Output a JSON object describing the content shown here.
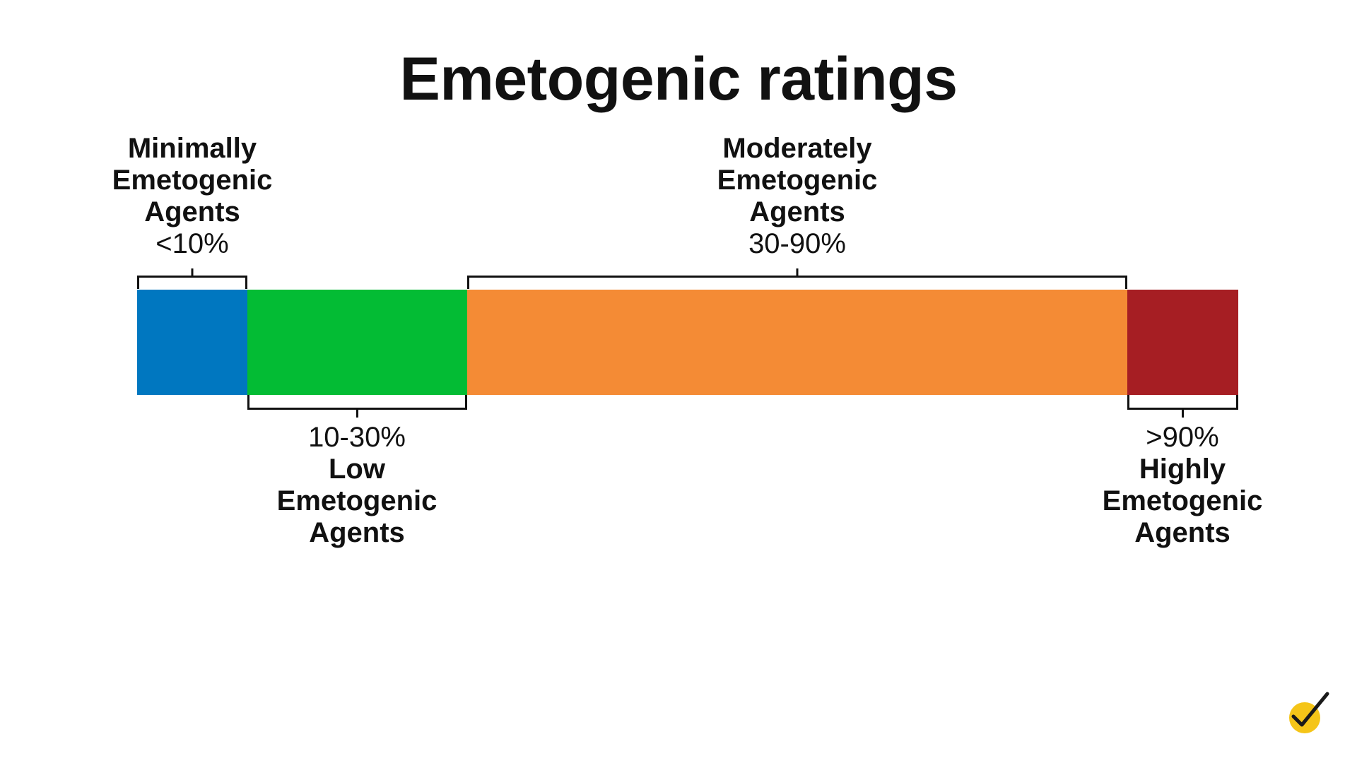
{
  "title": "Emetogenic ratings",
  "categories": [
    {
      "id": "minimal",
      "name": "Minimally\nEmetogenic\nAgents",
      "range": "<10%",
      "color": "#0077C0"
    },
    {
      "id": "low",
      "name": "Low\nEmetogenic\nAgents",
      "range": "10-30%",
      "color": "#03BC34"
    },
    {
      "id": "moderate",
      "name": "Moderately\nEmetogenic\nAgents",
      "range": "30-90%",
      "color": "#F48B35"
    },
    {
      "id": "high",
      "name": "Highly\nEmetogenic\nAgents",
      "range": ">90%",
      "color": "#A61E23"
    }
  ],
  "logo": {
    "icon": "checkmark-icon",
    "color": "#F5C518"
  }
}
